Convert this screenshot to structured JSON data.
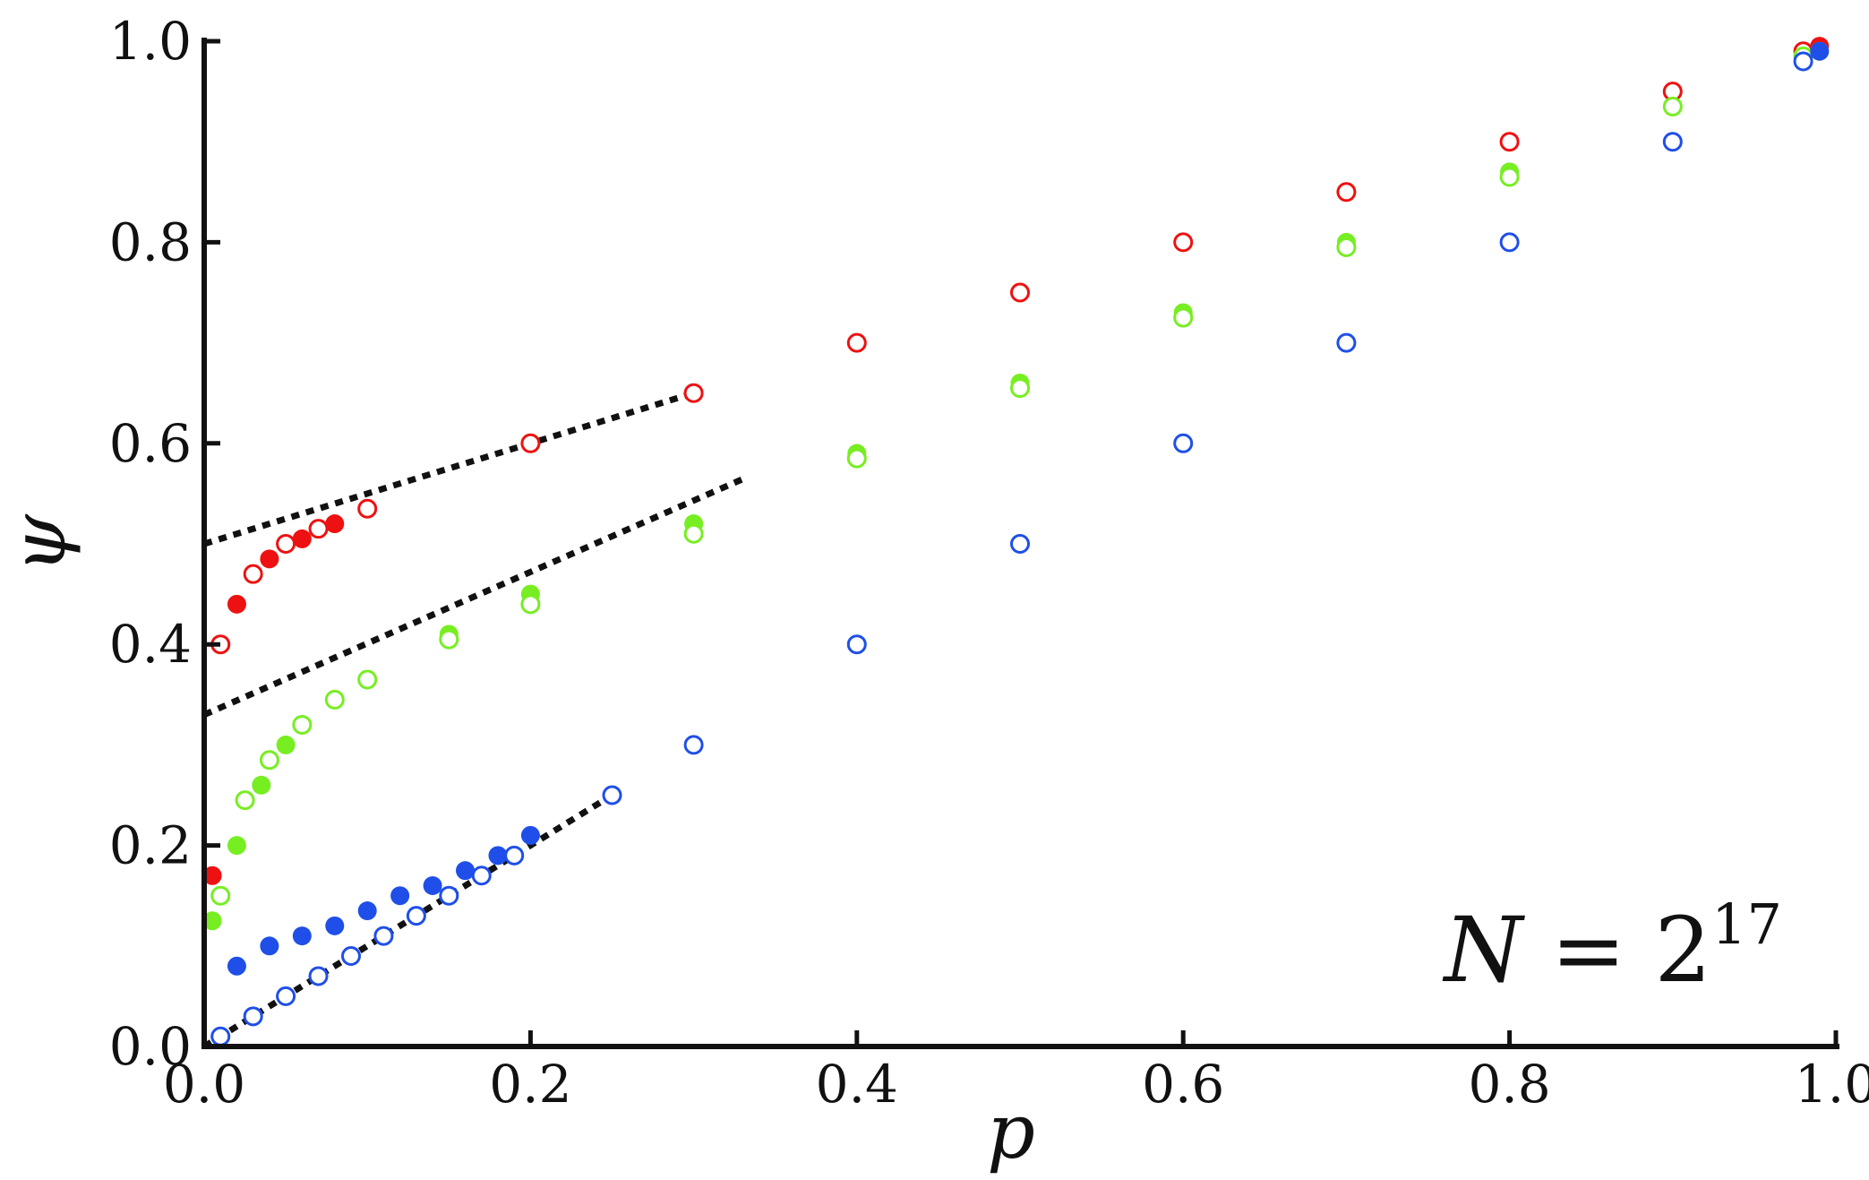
{
  "chart_data": {
    "type": "scatter",
    "xlabel": "p",
    "ylabel": "ψ",
    "xlim": [
      0.0,
      1.0
    ],
    "ylim": [
      0.0,
      1.0
    ],
    "x_ticks": [
      "0.0",
      "0.2",
      "0.4",
      "0.6",
      "0.8",
      "1.0"
    ],
    "y_ticks": [
      "0.0",
      "0.2",
      "0.4",
      "0.6",
      "0.8",
      "1.0"
    ],
    "annotation": {
      "base": "N",
      "eq": "=",
      "num": "2",
      "exp": "17"
    },
    "grid": false,
    "series_colors": {
      "red": "#ee1111",
      "green": "#77ee22",
      "blue": "#1f4fe8"
    },
    "series": [
      {
        "color": "#ee1111",
        "marker": "filled",
        "x": [
          0.005,
          0.02,
          0.04,
          0.06,
          0.08,
          0.1,
          0.2,
          0.3,
          0.4,
          0.5,
          0.6,
          0.7,
          0.8,
          0.9,
          0.99
        ],
        "y": [
          0.17,
          0.44,
          0.485,
          0.505,
          0.52,
          0.535,
          0.6,
          0.65,
          0.7,
          0.75,
          0.8,
          0.85,
          0.9,
          0.95,
          0.995
        ]
      },
      {
        "color": "#ee1111",
        "marker": "open",
        "x": [
          0.01,
          0.03,
          0.05,
          0.07,
          0.1,
          0.2,
          0.3,
          0.4,
          0.5,
          0.6,
          0.7,
          0.8,
          0.9,
          0.98
        ],
        "y": [
          0.4,
          0.47,
          0.5,
          0.515,
          0.535,
          0.6,
          0.65,
          0.7,
          0.75,
          0.8,
          0.85,
          0.9,
          0.95,
          0.99
        ]
      },
      {
        "color": "#77ee22",
        "marker": "filled",
        "x": [
          0.005,
          0.02,
          0.035,
          0.05,
          0.08,
          0.1,
          0.15,
          0.2,
          0.3,
          0.4,
          0.5,
          0.6,
          0.7,
          0.8,
          0.9,
          0.99
        ],
        "y": [
          0.125,
          0.2,
          0.26,
          0.3,
          0.345,
          0.365,
          0.41,
          0.45,
          0.52,
          0.59,
          0.66,
          0.73,
          0.8,
          0.87,
          0.935,
          0.99
        ]
      },
      {
        "color": "#77ee22",
        "marker": "open",
        "x": [
          0.01,
          0.025,
          0.04,
          0.06,
          0.08,
          0.1,
          0.15,
          0.2,
          0.3,
          0.4,
          0.5,
          0.6,
          0.7,
          0.8,
          0.9,
          0.98
        ],
        "y": [
          0.15,
          0.245,
          0.285,
          0.32,
          0.345,
          0.365,
          0.405,
          0.44,
          0.51,
          0.585,
          0.655,
          0.725,
          0.795,
          0.865,
          0.935,
          0.985
        ]
      },
      {
        "color": "#1f4fe8",
        "marker": "filled",
        "x": [
          0.02,
          0.04,
          0.06,
          0.08,
          0.1,
          0.12,
          0.14,
          0.16,
          0.18,
          0.2,
          0.25,
          0.3,
          0.4,
          0.5,
          0.6,
          0.7,
          0.8,
          0.9,
          0.99
        ],
        "y": [
          0.08,
          0.1,
          0.11,
          0.12,
          0.135,
          0.15,
          0.16,
          0.175,
          0.19,
          0.21,
          0.25,
          0.3,
          0.4,
          0.5,
          0.6,
          0.7,
          0.8,
          0.9,
          0.99
        ]
      },
      {
        "color": "#1f4fe8",
        "marker": "open",
        "x": [
          0.01,
          0.03,
          0.05,
          0.07,
          0.09,
          0.11,
          0.13,
          0.15,
          0.17,
          0.19,
          0.25,
          0.3,
          0.4,
          0.5,
          0.6,
          0.7,
          0.8,
          0.9,
          0.98
        ],
        "y": [
          0.01,
          0.03,
          0.05,
          0.07,
          0.09,
          0.11,
          0.13,
          0.15,
          0.17,
          0.19,
          0.25,
          0.3,
          0.4,
          0.5,
          0.6,
          0.7,
          0.8,
          0.9,
          0.98
        ]
      }
    ],
    "asymptotes": [
      {
        "style": "dotted",
        "color": "#111111",
        "x": [
          0.0,
          0.3
        ],
        "y": [
          0.5,
          0.65
        ]
      },
      {
        "style": "dotted",
        "color": "#111111",
        "x": [
          0.0,
          0.33
        ],
        "y": [
          0.33,
          0.5644
        ]
      },
      {
        "style": "dotted",
        "color": "#111111",
        "x": [
          0.0,
          0.25
        ],
        "y": [
          0.0,
          0.25
        ]
      }
    ]
  }
}
